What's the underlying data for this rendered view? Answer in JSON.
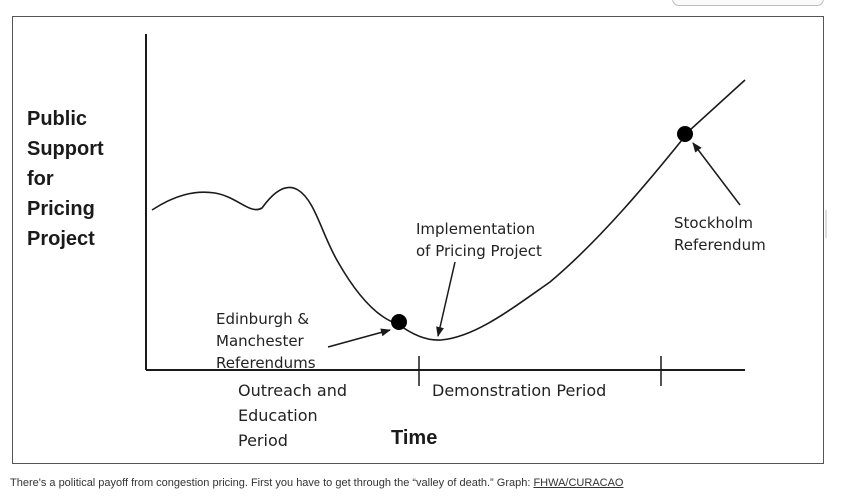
{
  "diagram": {
    "y_axis_label": "Public\nSupport\nfor\nPricing\nProject",
    "x_axis_label": "Time",
    "periods": [
      {
        "label": "Outreach and\nEducation\nPeriod"
      },
      {
        "label": "Demonstration Period"
      }
    ],
    "annotations": [
      {
        "label": "Edinburgh &\nManchester\nReferendums"
      },
      {
        "label": "Implementation\nof Pricing Project"
      },
      {
        "label": "Stockholm\nReferendum"
      }
    ],
    "colors": {
      "line": "#1a1a1a",
      "frame": "#555555"
    }
  },
  "caption": {
    "text": "There's a political payoff from congestion pricing. First you have to get through the “valley of death.” Graph: ",
    "credit": "FHWA/CURACAO"
  }
}
